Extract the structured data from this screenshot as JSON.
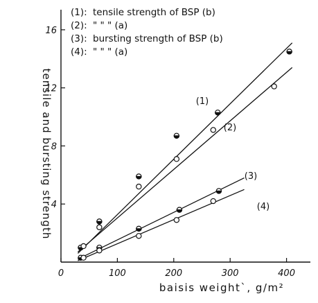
{
  "chart_data": {
    "type": "scatter",
    "xlabel": "baisis weight`, g/m²",
    "ylabel": "tensile and bursting strength",
    "xlim": [
      0,
      430
    ],
    "ylim": [
      0,
      17
    ],
    "x_ticks": [
      0,
      100,
      200,
      300,
      400
    ],
    "x_tick_labels": [
      "0",
      "100",
      "200",
      "300",
      "400"
    ],
    "y_ticks": [
      4,
      8,
      12,
      16
    ],
    "y_tick_labels": [
      "4",
      "8",
      "12",
      "16"
    ],
    "legend": [
      {
        "num": "(1):",
        "text": "tensile strength of BSP (b)"
      },
      {
        "num": "(2):",
        "text": "\"             \"             \"  (a)"
      },
      {
        "num": "(3):",
        "text": "bursting strength of BSP (b)"
      },
      {
        "num": "(4):",
        "text": "\"             \"             \"  (a)"
      }
    ],
    "series": [
      {
        "label": "(1)",
        "marker": "half",
        "x": [
          35,
          68,
          138,
          205,
          278,
          405
        ],
        "y": [
          1.0,
          2.8,
          5.9,
          8.7,
          10.3,
          14.5
        ],
        "fit": [
          [
            30,
            0.6
          ],
          [
            410,
            15.1
          ]
        ]
      },
      {
        "label": "(2)",
        "marker": "open",
        "x": [
          40,
          68,
          138,
          205,
          270,
          378
        ],
        "y": [
          1.1,
          2.4,
          5.2,
          7.1,
          9.1,
          12.1
        ],
        "fit": [
          [
            30,
            0.7
          ],
          [
            410,
            13.4
          ]
        ]
      },
      {
        "label": "(3)",
        "marker": "half",
        "x": [
          35,
          68,
          138,
          210,
          280
        ],
        "y": [
          0.3,
          1.0,
          2.3,
          3.6,
          4.9
        ],
        "fit": [
          [
            30,
            0.2
          ],
          [
            325,
            5.8
          ]
        ]
      },
      {
        "label": "(4)",
        "marker": "open",
        "x": [
          40,
          68,
          138,
          205,
          270
        ],
        "y": [
          0.3,
          0.8,
          1.8,
          2.9,
          4.2
        ],
        "fit": [
          [
            30,
            0.1
          ],
          [
            325,
            5.0
          ]
        ]
      }
    ]
  }
}
